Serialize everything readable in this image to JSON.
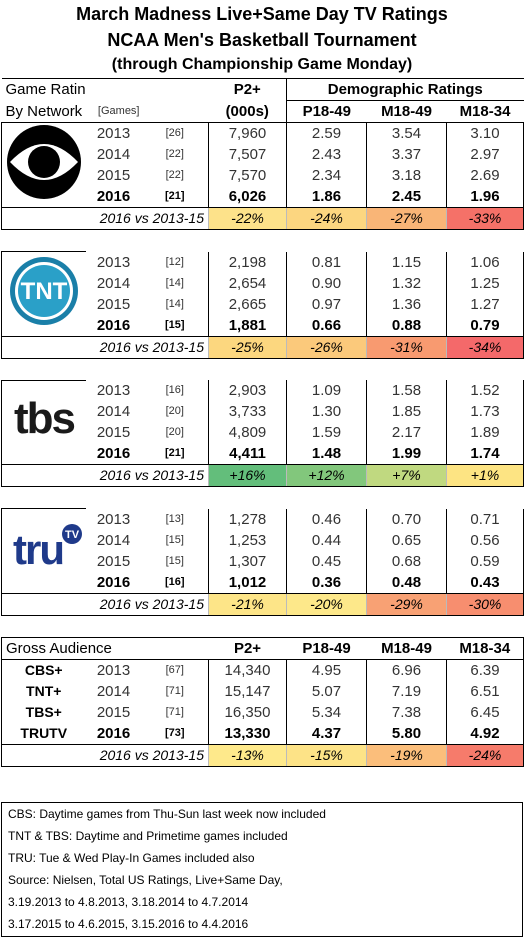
{
  "title": {
    "line1": "March Madness Live+Same Day TV Ratings",
    "line2": "NCAA Men's Basketball Tournament",
    "line3": "(through Championship Game Monday)"
  },
  "header": {
    "game_ratings": "Game Ratings",
    "by_network": "By Network",
    "games": "[Games]",
    "p2": "P2+",
    "p2_unit": "(000s)",
    "demo": "Demographic Ratings",
    "p1849": "P18-49",
    "m1849": "M18-49",
    "m1834": "M18-34"
  },
  "networks": [
    {
      "logo": "cbs-eye-logo",
      "rows": [
        {
          "year": "2013",
          "games": "[26]",
          "p2": "7,960",
          "p1849": "2.59",
          "m1849": "3.54",
          "m1834": "3.10"
        },
        {
          "year": "2014",
          "games": "[22]",
          "p2": "7,507",
          "p1849": "2.43",
          "m1849": "3.37",
          "m1834": "2.97"
        },
        {
          "year": "2015",
          "games": "[22]",
          "p2": "7,570",
          "p1849": "2.34",
          "m1849": "3.18",
          "m1834": "2.69"
        },
        {
          "year": "2016",
          "games": "[21]",
          "p2": "6,026",
          "p1849": "1.86",
          "m1849": "2.45",
          "m1834": "1.96"
        }
      ],
      "vs_label": "2016 vs 2013-15",
      "vs": [
        {
          "value": "-22%",
          "color": "#fde28a"
        },
        {
          "value": "-24%",
          "color": "#fcd680"
        },
        {
          "value": "-27%",
          "color": "#f9b577"
        },
        {
          "value": "-33%",
          "color": "#f57168"
        }
      ]
    },
    {
      "logo": "tnt-logo",
      "rows": [
        {
          "year": "2013",
          "games": "[12]",
          "p2": "2,198",
          "p1849": "0.81",
          "m1849": "1.15",
          "m1834": "1.06"
        },
        {
          "year": "2014",
          "games": "[14]",
          "p2": "2,654",
          "p1849": "0.90",
          "m1849": "1.32",
          "m1834": "1.25"
        },
        {
          "year": "2015",
          "games": "[14]",
          "p2": "2,665",
          "p1849": "0.97",
          "m1849": "1.36",
          "m1834": "1.27"
        },
        {
          "year": "2016",
          "games": "[15]",
          "p2": "1,881",
          "p1849": "0.66",
          "m1849": "0.88",
          "m1834": "0.79"
        }
      ],
      "vs_label": "2016 vs 2013-15",
      "vs": [
        {
          "value": "-25%",
          "color": "#fcd77f"
        },
        {
          "value": "-26%",
          "color": "#fbc97b"
        },
        {
          "value": "-31%",
          "color": "#f89a70"
        },
        {
          "value": "-34%",
          "color": "#f4696a"
        }
      ]
    },
    {
      "logo": "tbs-logo",
      "rows": [
        {
          "year": "2013",
          "games": "[16]",
          "p2": "2,903",
          "p1849": "1.09",
          "m1849": "1.58",
          "m1834": "1.52"
        },
        {
          "year": "2014",
          "games": "[20]",
          "p2": "3,733",
          "p1849": "1.30",
          "m1849": "1.85",
          "m1834": "1.73"
        },
        {
          "year": "2015",
          "games": "[20]",
          "p2": "4,809",
          "p1849": "1.59",
          "m1849": "2.17",
          "m1834": "1.89"
        },
        {
          "year": "2016",
          "games": "[21]",
          "p2": "4,411",
          "p1849": "1.48",
          "m1849": "1.99",
          "m1834": "1.74"
        }
      ],
      "vs_label": "2016 vs 2013-15",
      "vs": [
        {
          "value": "+16%",
          "color": "#63be7b"
        },
        {
          "value": "+12%",
          "color": "#82c77c"
        },
        {
          "value": "+7%",
          "color": "#c0d980"
        },
        {
          "value": "+1%",
          "color": "#fde483"
        }
      ]
    },
    {
      "logo": "trutv-logo",
      "rows": [
        {
          "year": "2013",
          "games": "[13]",
          "p2": "1,278",
          "p1849": "0.46",
          "m1849": "0.70",
          "m1834": "0.71"
        },
        {
          "year": "2014",
          "games": "[15]",
          "p2": "1,253",
          "p1849": "0.44",
          "m1849": "0.65",
          "m1834": "0.56"
        },
        {
          "year": "2015",
          "games": "[15]",
          "p2": "1,307",
          "p1849": "0.45",
          "m1849": "0.68",
          "m1834": "0.59"
        },
        {
          "year": "2016",
          "games": "[16]",
          "p2": "1,012",
          "p1849": "0.36",
          "m1849": "0.48",
          "m1834": "0.43"
        }
      ],
      "vs_label": "2016 vs 2013-15",
      "vs": [
        {
          "value": "-21%",
          "color": "#fde588"
        },
        {
          "value": "-20%",
          "color": "#fde88a"
        },
        {
          "value": "-29%",
          "color": "#f8a174"
        },
        {
          "value": "-30%",
          "color": "#f78e6f"
        }
      ]
    }
  ],
  "gross": {
    "title": "Gross Audience",
    "networks": [
      "CBS+",
      "TNT+",
      "TBS+",
      "TRUTV"
    ],
    "p2": "P2+",
    "p1849": "P18-49",
    "m1849": "M18-49",
    "m1834": "M18-34",
    "rows": [
      {
        "year": "2013",
        "games": "[67]",
        "p2": "14,340",
        "p1849": "4.95",
        "m1849": "6.96",
        "m1834": "6.39"
      },
      {
        "year": "2014",
        "games": "[71]",
        "p2": "15,147",
        "p1849": "5.07",
        "m1849": "7.19",
        "m1834": "6.51"
      },
      {
        "year": "2015",
        "games": "[71]",
        "p2": "16,350",
        "p1849": "5.34",
        "m1849": "7.38",
        "m1834": "6.45"
      },
      {
        "year": "2016",
        "games": "[73]",
        "p2": "13,330",
        "p1849": "4.37",
        "m1849": "5.80",
        "m1834": "4.92"
      }
    ],
    "vs_label": "2016 vs 2013-15",
    "vs": [
      {
        "value": "-13%",
        "color": "#fee98b"
      },
      {
        "value": "-15%",
        "color": "#fde387"
      },
      {
        "value": "-19%",
        "color": "#fbbe7b"
      },
      {
        "value": "-24%",
        "color": "#f67b6b"
      }
    ]
  },
  "notes": [
    "CBS: Daytime games from Thu-Sun last week now included",
    "TNT & TBS: Daytime and Primetime games included",
    "TRU: Tue & Wed Play-In Games included also",
    "Source: Nielsen, Total US Ratings, Live+Same Day,",
    "3.19.2013 to 4.8.2013, 3.18.2014 to 4.7.2014",
    "3.17.2015 to 4.6.2015, 3.15.2016 to 4.4.2016"
  ]
}
